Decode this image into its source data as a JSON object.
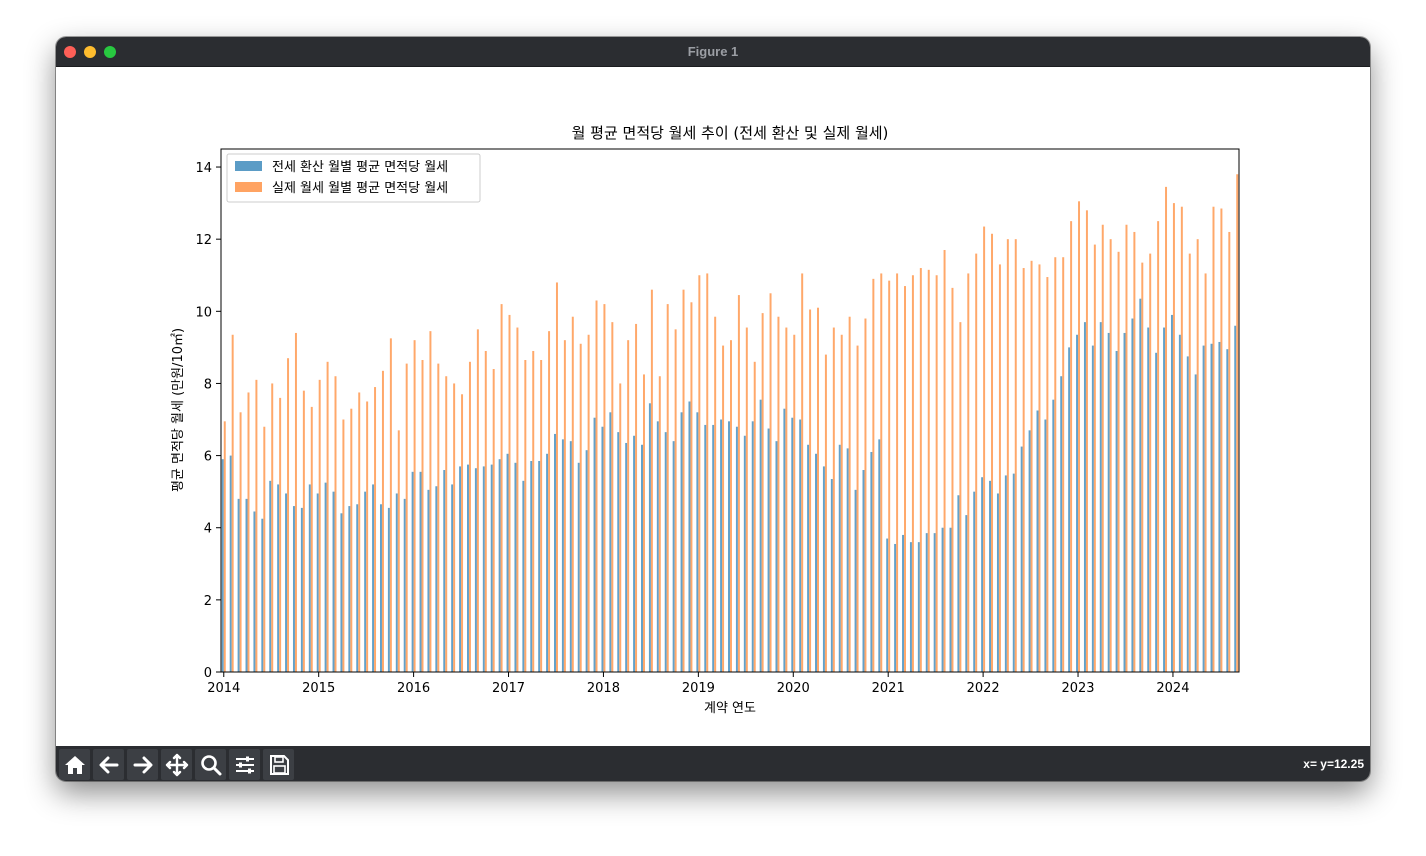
{
  "window": {
    "title": "Figure 1"
  },
  "toolbar": {
    "buttons": [
      {
        "name": "home-button",
        "icon": "home-icon"
      },
      {
        "name": "back-button",
        "icon": "arrow-left-icon"
      },
      {
        "name": "forward-button",
        "icon": "arrow-right-icon"
      },
      {
        "name": "pan-button",
        "icon": "move-icon"
      },
      {
        "name": "zoom-button",
        "icon": "search-icon"
      },
      {
        "name": "configure-button",
        "icon": "sliders-icon"
      },
      {
        "name": "save-button",
        "icon": "save-icon"
      }
    ],
    "coords": "x= y=12.25"
  },
  "colors": {
    "series1": "#5b9cc6",
    "series2": "#ffa362",
    "chrome": "#2b2d31"
  },
  "chart_data": {
    "type": "bar",
    "title": "월 평균 면적당 월세 추이 (전세 환산 및 실제 월세)",
    "xlabel": "계약 연도",
    "ylabel": "평균 면적당 월세 (만원/10㎡)",
    "ylim": [
      0,
      14.5
    ],
    "yticks": [
      "0",
      "2",
      "4",
      "6",
      "8",
      "10",
      "12",
      "14"
    ],
    "xticks": [
      "2014",
      "2015",
      "2016",
      "2017",
      "2018",
      "2019",
      "2020",
      "2021",
      "2022",
      "2023",
      "2024"
    ],
    "x_start": "2014-01",
    "x_end": "2024-09",
    "grid": false,
    "legend": "top-left",
    "series": [
      {
        "name": "전세 환산 월별 평균 면적당 월세",
        "color": "#5b9cc6",
        "values": [
          5.9,
          6.0,
          4.8,
          4.8,
          4.45,
          4.25,
          5.3,
          5.2,
          4.95,
          4.6,
          4.55,
          5.2,
          4.95,
          5.25,
          5.0,
          4.4,
          4.6,
          4.65,
          5.0,
          5.2,
          4.65,
          4.55,
          4.95,
          4.8,
          5.55,
          5.55,
          5.05,
          5.15,
          5.6,
          5.2,
          5.7,
          5.75,
          5.65,
          5.7,
          5.75,
          5.9,
          6.05,
          5.8,
          5.3,
          5.85,
          5.85,
          6.05,
          6.6,
          6.45,
          6.4,
          5.8,
          6.15,
          7.05,
          6.8,
          7.2,
          6.65,
          6.35,
          6.55,
          6.3,
          7.45,
          6.95,
          6.65,
          6.4,
          7.2,
          7.5,
          7.2,
          6.85,
          6.85,
          7.0,
          6.95,
          6.8,
          6.55,
          6.95,
          7.55,
          6.75,
          6.4,
          7.3,
          7.05,
          7.0,
          6.3,
          6.05,
          5.7,
          5.35,
          6.3,
          6.2,
          5.05,
          5.6,
          6.1,
          6.45,
          3.7,
          3.55,
          3.8,
          3.6,
          3.6,
          3.85,
          3.85,
          4.0,
          4.0,
          4.9,
          4.35,
          5.0,
          5.4,
          5.3,
          4.95,
          5.45,
          5.5,
          6.25,
          6.7,
          7.25,
          7.0,
          7.55,
          8.2,
          9.0,
          9.35,
          9.7,
          9.05,
          9.7,
          9.4,
          8.9,
          9.4,
          9.8,
          10.35,
          9.55,
          8.85,
          9.55,
          9.9,
          9.35,
          8.75,
          8.25,
          9.05,
          9.1,
          9.15,
          8.95,
          9.6
        ]
      },
      {
        "name": "실제 월세 월별 평균 면적당 월세",
        "color": "#ffa362",
        "values": [
          6.95,
          9.35,
          7.2,
          7.75,
          8.1,
          6.8,
          8.0,
          7.6,
          8.7,
          9.4,
          7.8,
          7.35,
          8.1,
          8.6,
          8.2,
          7.0,
          7.3,
          7.75,
          7.5,
          7.9,
          8.35,
          9.25,
          6.7,
          8.55,
          9.2,
          8.65,
          9.45,
          8.55,
          8.2,
          8.0,
          7.7,
          8.6,
          9.5,
          8.9,
          8.4,
          10.2,
          9.9,
          9.55,
          8.65,
          8.9,
          8.65,
          9.45,
          10.8,
          9.2,
          9.85,
          9.1,
          9.35,
          10.3,
          10.2,
          9.7,
          8.0,
          9.2,
          9.65,
          8.25,
          10.6,
          8.2,
          10.2,
          9.5,
          10.6,
          10.25,
          11.0,
          11.05,
          9.85,
          9.05,
          9.2,
          10.45,
          9.55,
          8.6,
          9.95,
          10.5,
          9.85,
          9.55,
          9.35,
          11.05,
          10.05,
          10.1,
          8.8,
          9.55,
          9.35,
          9.85,
          9.05,
          9.8,
          10.9,
          11.05,
          10.85,
          11.05,
          10.7,
          11.0,
          11.2,
          11.15,
          11.0,
          11.7,
          10.65,
          9.7,
          11.05,
          11.6,
          12.35,
          12.15,
          11.3,
          12.0,
          12.0,
          11.2,
          11.4,
          11.3,
          10.95,
          11.5,
          11.5,
          12.5,
          13.05,
          12.8,
          11.85,
          12.4,
          12.0,
          11.65,
          12.4,
          12.2,
          11.35,
          11.6,
          12.5,
          13.45,
          13.0,
          12.9,
          11.6,
          12.0,
          11.05,
          12.9,
          12.85,
          12.2,
          13.8
        ]
      }
    ]
  }
}
